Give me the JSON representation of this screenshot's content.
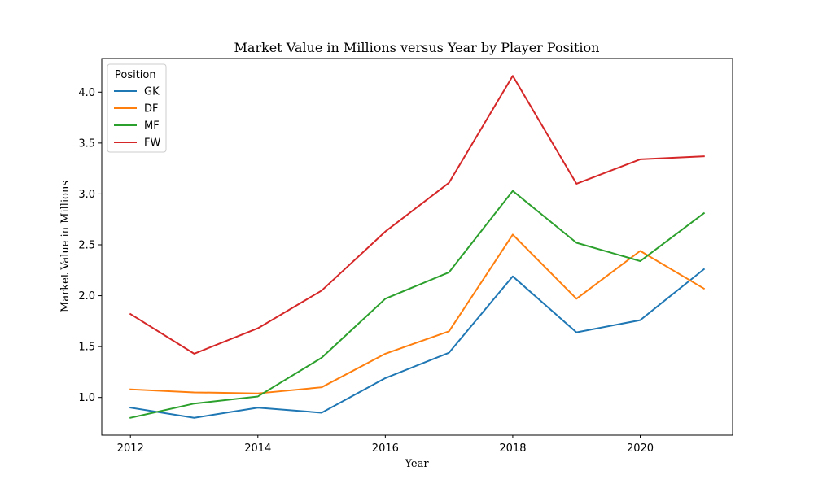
{
  "chart_data": {
    "type": "line",
    "title": "Market Value in Millions versus Year by Player Position",
    "xlabel": "Year",
    "ylabel": "Market Value in Millions",
    "x": [
      2012,
      2013,
      2014,
      2015,
      2016,
      2017,
      2018,
      2019,
      2020,
      2021
    ],
    "xlim": [
      2011.55,
      2021.45
    ],
    "ylim": [
      0.63,
      4.33
    ],
    "x_ticks": [
      2012,
      2014,
      2016,
      2018,
      2020
    ],
    "x_tick_labels": [
      "2012",
      "2014",
      "2016",
      "2018",
      "2020"
    ],
    "y_ticks": [
      1.0,
      1.5,
      2.0,
      2.5,
      3.0,
      3.5,
      4.0
    ],
    "y_tick_labels": [
      "1.0",
      "1.5",
      "2.0",
      "2.5",
      "3.0",
      "3.5",
      "4.0"
    ],
    "grid": false,
    "legend": {
      "title": "Position",
      "placement": "top-left"
    },
    "series": [
      {
        "name": "GK",
        "color": "#1f77b4",
        "values": [
          0.9,
          0.8,
          0.9,
          0.85,
          1.19,
          1.44,
          2.19,
          1.64,
          1.76,
          2.26
        ]
      },
      {
        "name": "DF",
        "color": "#ff7f0e",
        "values": [
          1.08,
          1.05,
          1.04,
          1.1,
          1.43,
          1.65,
          2.6,
          1.97,
          2.44,
          2.07
        ]
      },
      {
        "name": "MF",
        "color": "#2ca02c",
        "values": [
          0.8,
          0.94,
          1.01,
          1.39,
          1.97,
          2.23,
          3.03,
          2.52,
          2.34,
          2.81
        ]
      },
      {
        "name": "FW",
        "color": "#d62728",
        "values": [
          1.82,
          1.43,
          1.68,
          2.05,
          2.63,
          3.11,
          4.16,
          3.1,
          3.34,
          3.37
        ]
      }
    ]
  }
}
